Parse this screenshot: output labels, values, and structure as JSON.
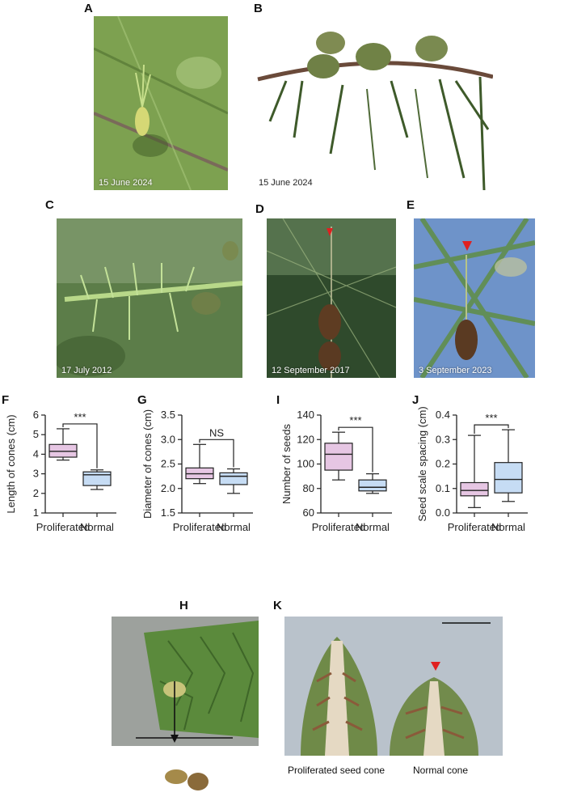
{
  "panels": {
    "A": {
      "label": "A",
      "date": "15 June 2024"
    },
    "B": {
      "label": "B",
      "date": "15 June 2024"
    },
    "C": {
      "label": "C",
      "date": "17 July 2012"
    },
    "D": {
      "label": "D",
      "date": "12 September 2017"
    },
    "E": {
      "label": "E",
      "date": "3 September 2023"
    },
    "H": {
      "label": "H"
    },
    "K": {
      "label": "K",
      "caption_left": "Proliferated seed cone",
      "caption_right": "Normal cone"
    }
  },
  "colors": {
    "proliferated": "#e6c6e3",
    "normal": "#c6dcf4",
    "arrowhead": "#e02020"
  },
  "chart_data": [
    {
      "id": "F",
      "label": "F",
      "type": "box",
      "categories": [
        "Proliferated",
        "Normal"
      ],
      "ylabel": "Length of cones (cm)",
      "ylim": [
        1,
        6
      ],
      "yticks": [
        1,
        2,
        3,
        4,
        5,
        6
      ],
      "significance": "***",
      "boxes": [
        {
          "min": 3.7,
          "q1": 3.85,
          "median": 4.15,
          "q3": 4.5,
          "max": 5.3
        },
        {
          "min": 2.2,
          "q1": 2.4,
          "median": 2.95,
          "q3": 3.1,
          "max": 3.2
        }
      ]
    },
    {
      "id": "G",
      "label": "G",
      "type": "box",
      "categories": [
        "Proliferated",
        "Normal"
      ],
      "ylabel": "Diameter of cones (cm)",
      "ylim": [
        1.5,
        3.5
      ],
      "yticks": [
        "1.5",
        "2.0",
        "2.5",
        "3.0",
        "3.5"
      ],
      "significance": "NS",
      "boxes": [
        {
          "min": 2.1,
          "q1": 2.2,
          "median": 2.3,
          "q3": 2.42,
          "max": 2.9
        },
        {
          "min": 1.9,
          "q1": 2.08,
          "median": 2.25,
          "q3": 2.32,
          "max": 2.4
        }
      ]
    },
    {
      "id": "I",
      "label": "I",
      "type": "box",
      "categories": [
        "Proliferated",
        "Normal"
      ],
      "ylabel": "Number of seeds",
      "ylim": [
        60,
        140
      ],
      "yticks": [
        60,
        80,
        100,
        120,
        140
      ],
      "significance": "***",
      "boxes": [
        {
          "min": 87,
          "q1": 95,
          "median": 108,
          "q3": 117,
          "max": 126
        },
        {
          "min": 76,
          "q1": 78,
          "median": 81,
          "q3": 87,
          "max": 92
        }
      ]
    },
    {
      "id": "J",
      "label": "J",
      "type": "box",
      "categories": [
        "Proliferated",
        "Normal"
      ],
      "ylabel": "Seed scale spacing (cm)",
      "ylim": [
        0,
        0.4
      ],
      "yticks": [
        "0.0",
        "0.1",
        "0.2",
        "0.3",
        "0.4"
      ],
      "significance": "***",
      "boxes": [
        {
          "min": 0.022,
          "q1": 0.07,
          "median": 0.092,
          "q3": 0.124,
          "max": 0.317
        },
        {
          "min": 0.047,
          "q1": 0.082,
          "median": 0.137,
          "q3": 0.206,
          "max": 0.34
        }
      ]
    }
  ]
}
